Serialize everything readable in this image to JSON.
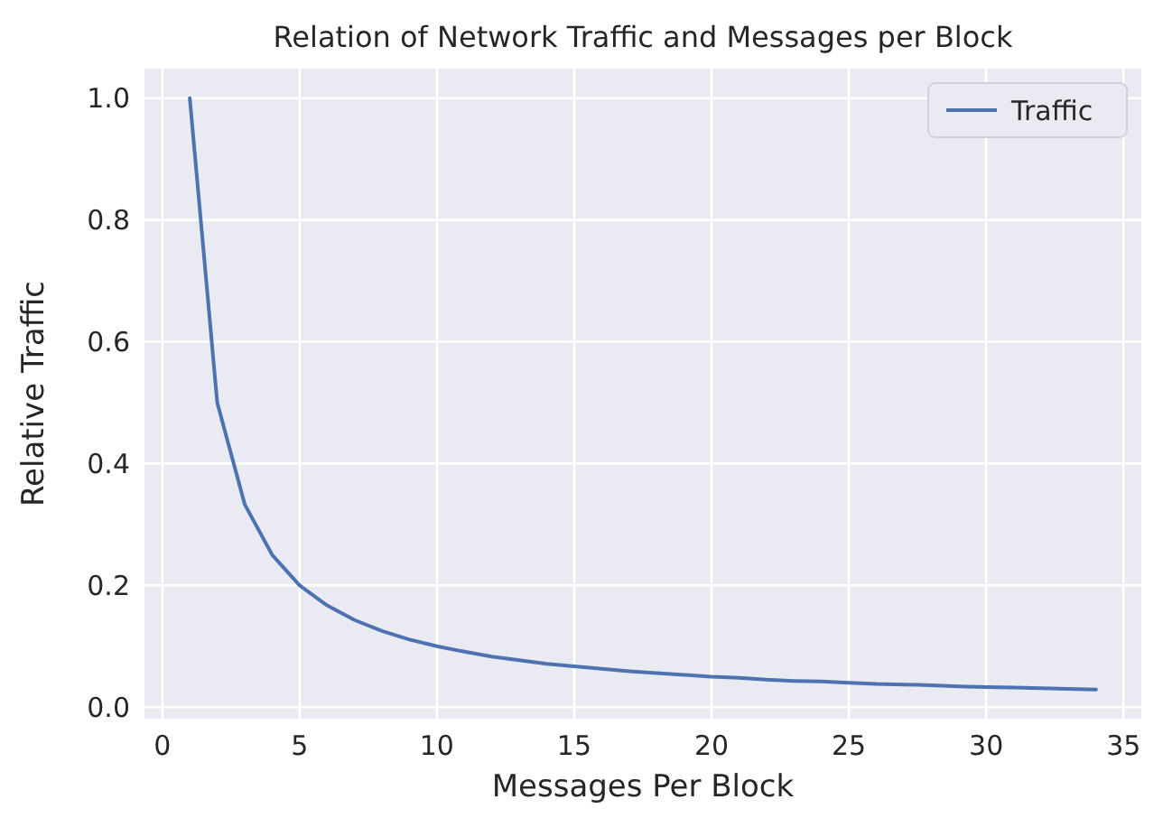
{
  "chart_data": {
    "type": "line",
    "title": "Relation of Network Traffic and Messages per Block",
    "xlabel": "Messages Per Block",
    "ylabel": "Relative Traffic",
    "x": [
      1,
      2,
      3,
      4,
      5,
      6,
      7,
      8,
      9,
      10,
      11,
      12,
      13,
      14,
      15,
      16,
      17,
      18,
      19,
      20,
      21,
      22,
      23,
      24,
      25,
      26,
      27,
      28,
      29,
      30,
      31,
      32,
      33,
      34
    ],
    "series": [
      {
        "name": "Traffic",
        "color": "#4c72b0",
        "values": [
          1.0,
          0.5,
          0.333,
          0.25,
          0.2,
          0.167,
          0.143,
          0.125,
          0.111,
          0.1,
          0.091,
          0.083,
          0.077,
          0.071,
          0.067,
          0.063,
          0.059,
          0.056,
          0.053,
          0.05,
          0.048,
          0.045,
          0.043,
          0.042,
          0.04,
          0.038,
          0.037,
          0.036,
          0.034,
          0.033,
          0.032,
          0.031,
          0.03,
          0.029
        ]
      }
    ],
    "xlim": [
      -0.65,
      35.65
    ],
    "ylim": [
      -0.019,
      1.0485
    ],
    "xticks": [
      0,
      5,
      10,
      15,
      20,
      25,
      30,
      35
    ],
    "yticks": [
      {
        "value": 0,
        "label": "0.0"
      },
      {
        "value": 0.2,
        "label": "0.2"
      },
      {
        "value": 0.4,
        "label": "0.4"
      },
      {
        "value": 0.6,
        "label": "0.6"
      },
      {
        "value": 0.8,
        "label": "0.8"
      },
      {
        "value": 1,
        "label": "1.0"
      }
    ],
    "grid": true,
    "legend": "top right",
    "marker": "none",
    "line_style": "solid"
  }
}
